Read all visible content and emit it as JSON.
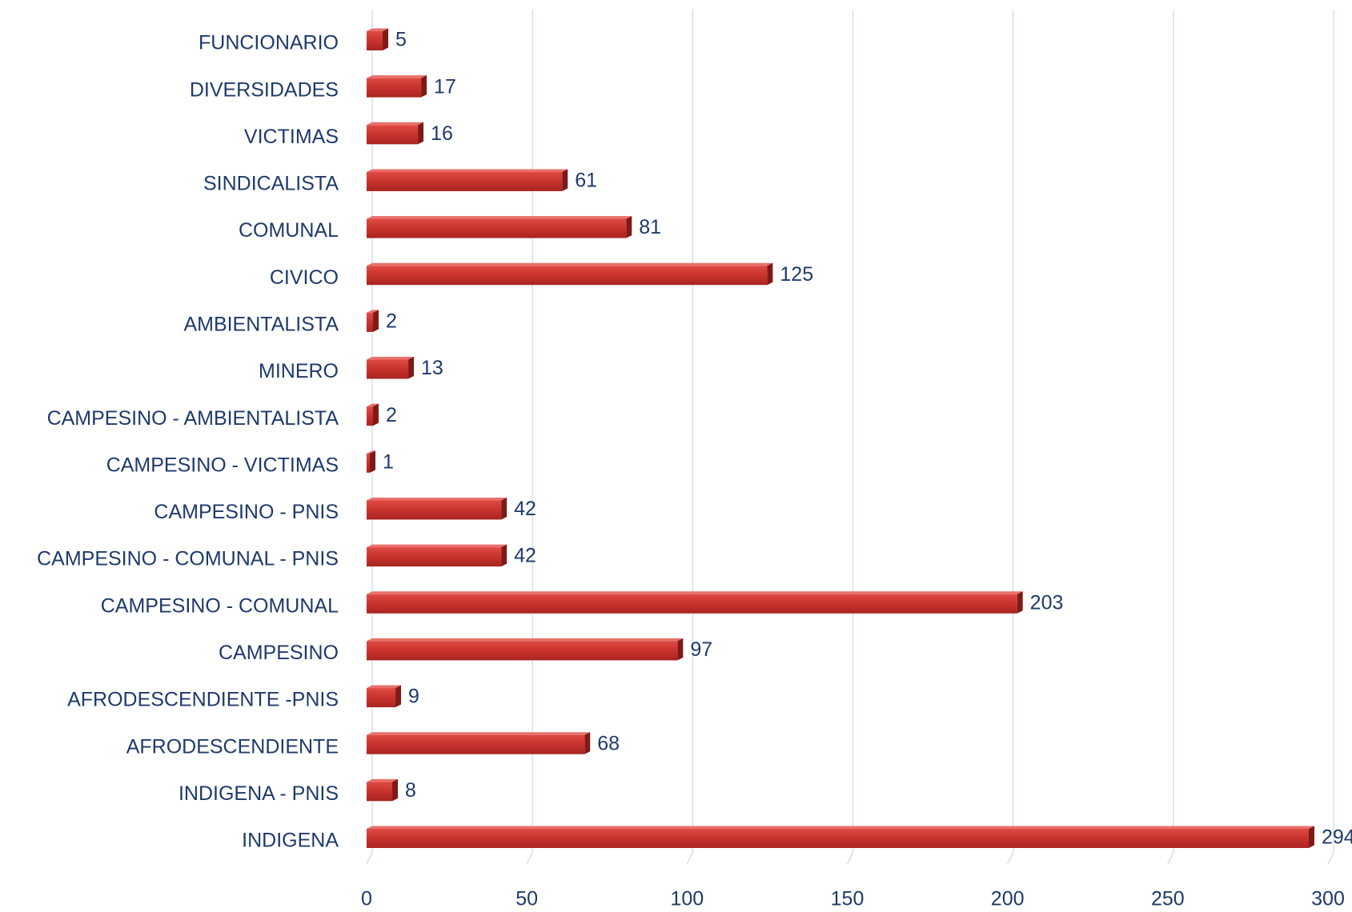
{
  "chart_data": {
    "type": "bar",
    "orientation": "horizontal",
    "categories": [
      "FUNCIONARIO",
      "DIVERSIDADES",
      "VICTIMAS",
      "SINDICALISTA",
      "COMUNAL",
      "CIVICO",
      "AMBIENTALISTA",
      "MINERO",
      "CAMPESINO - AMBIENTALISTA",
      "CAMPESINO - VICTIMAS",
      "CAMPESINO - PNIS",
      "CAMPESINO - COMUNAL - PNIS",
      "CAMPESINO - COMUNAL",
      "CAMPESINO",
      "AFRODESCENDIENTE -PNIS",
      "AFRODESCENDIENTE",
      "INDIGENA - PNIS",
      "INDIGENA"
    ],
    "values": [
      5,
      17,
      16,
      61,
      81,
      125,
      2,
      13,
      2,
      1,
      42,
      42,
      203,
      97,
      9,
      68,
      8,
      294
    ],
    "color": "#c0302c",
    "xlim": [
      0,
      300
    ],
    "xticks": [
      0,
      50,
      100,
      150,
      200,
      250,
      300
    ],
    "grid": true
  }
}
